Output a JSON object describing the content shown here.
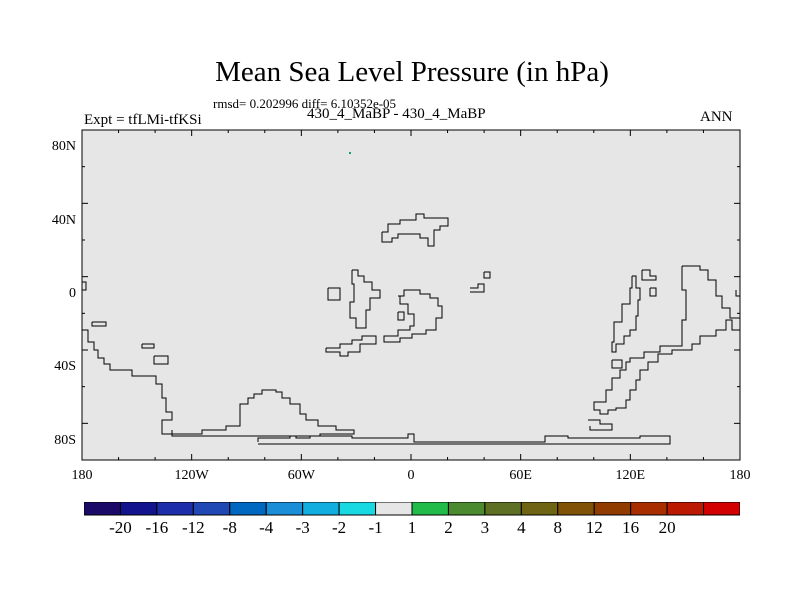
{
  "title": "Mean Sea Level Pressure (in hPa)",
  "stats": "rmsd= 0.202996 diff= 6.10352e-05",
  "subtitle": "430_4_MaBP - 430_4_MaBP",
  "expt": "Expt = tfLMi-tfKSi",
  "season": "ANN",
  "map": {
    "field_color": "#e6e6e6",
    "lat_ticks": [
      "80N",
      "40N",
      "0",
      "40S",
      "80S"
    ],
    "lon_ticks": [
      "180",
      "120W",
      "60W",
      "0",
      "60E",
      "120E",
      "180"
    ]
  },
  "colorbar": {
    "colors": [
      "#1b0a68",
      "#13138d",
      "#1c2eaa",
      "#1f48b4",
      "#0068c0",
      "#1a8fd8",
      "#12aee0",
      "#18d9e2",
      "#e6e6e6",
      "#22bb4a",
      "#4b8a2e",
      "#5e7024",
      "#6e6414",
      "#7f5208",
      "#903b00",
      "#a82e00",
      "#bc1a00",
      "#d20000"
    ],
    "labels": [
      "-20",
      "-16",
      "-12",
      "-8",
      "-4",
      "-3",
      "-2",
      "-1",
      "1",
      "2",
      "3",
      "4",
      "8",
      "12",
      "16",
      "20"
    ]
  }
}
